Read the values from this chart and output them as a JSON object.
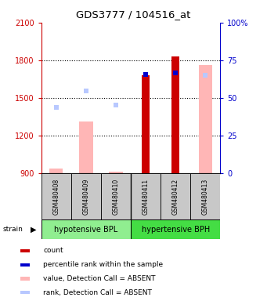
{
  "title": "GDS3777 / 104516_at",
  "samples": [
    "GSM480408",
    "GSM480409",
    "GSM480410",
    "GSM480411",
    "GSM480412",
    "GSM480413"
  ],
  "ylim_left": [
    900,
    2100
  ],
  "ylim_right": [
    0,
    100
  ],
  "yticks_left": [
    900,
    1200,
    1500,
    1800,
    2100
  ],
  "yticks_right": [
    0,
    25,
    50,
    75,
    100
  ],
  "left_color": "#CC0000",
  "right_color": "#0000CC",
  "absent_value_bars": [
    935,
    1310,
    910,
    null,
    null,
    1760
  ],
  "present_count_bars": [
    null,
    null,
    null,
    1680,
    1830,
    null
  ],
  "absent_rank_dots": [
    1425,
    1555,
    1440,
    null,
    null,
    1680
  ],
  "present_rank_dots": [
    null,
    null,
    null,
    1685,
    1700,
    null
  ],
  "grid_lines": [
    1200,
    1500,
    1800
  ],
  "group1_label": "hypotensive BPL",
  "group1_color": "#90EE90",
  "group2_label": "hypertensive BPH",
  "group2_color": "#44DD44",
  "sample_box_color": "#C8C8C8",
  "legend_items": [
    {
      "color": "#CC0000",
      "label": "count"
    },
    {
      "color": "#0000CC",
      "label": "percentile rank within the sample"
    },
    {
      "color": "#FFB6B6",
      "label": "value, Detection Call = ABSENT"
    },
    {
      "color": "#B8C8FF",
      "label": "rank, Detection Call = ABSENT"
    }
  ]
}
